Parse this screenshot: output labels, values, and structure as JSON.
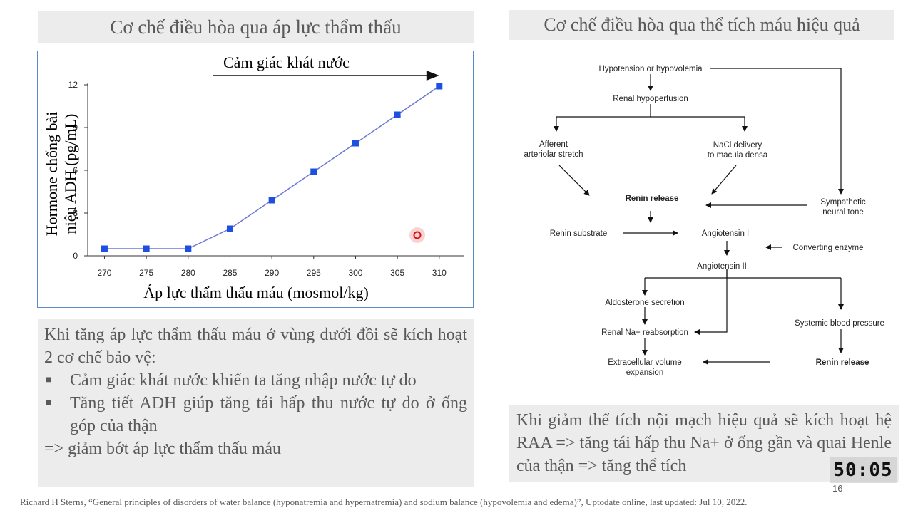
{
  "left_title": "Cơ chế điều hòa qua áp lực thẩm thấu",
  "right_title": "Cơ chế điều hòa qua thể tích máu hiệu quả",
  "chart_data": {
    "type": "line",
    "title": "",
    "xlabel": "Áp lực thẩm thấu máu (mosmol/kg)",
    "ylabel_line1": "Hormone chống bài",
    "ylabel_line2": "niệu ADH (pg/mL)",
    "annotation": "Cảm giác khát nước",
    "x": [
      270,
      275,
      280,
      285,
      290,
      295,
      300,
      305,
      310
    ],
    "series": [
      {
        "values": [
          0.5,
          0.5,
          0.5,
          1.9,
          3.9,
          5.9,
          7.9,
          9.9,
          11.9
        ]
      }
    ],
    "xlim": [
      268,
      313
    ],
    "ylim": [
      0,
      12
    ],
    "xticks": [
      "270",
      "275",
      "280",
      "285",
      "290",
      "295",
      "300",
      "305",
      "310"
    ],
    "yticks": [
      "0",
      "3",
      "6",
      "9",
      "12"
    ],
    "line_color": "#6b78d4",
    "marker_color": "#1f4fe0",
    "arrow_from_x": 283,
    "arrow_to_x": 310
  },
  "left_text": {
    "intro": "Khi tăng áp lực thẩm thấu máu ở vùng dưới đồi sẽ kích hoạt 2 cơ chế bảo vệ:",
    "bullets": [
      "Cảm giác khát nước khiến ta tăng nhập nước tự do",
      "Tăng tiết ADH giúp tăng tái hấp thu nước tự do ở ống góp của thận"
    ],
    "conclusion": "=> giảm bớt áp lực thẩm thấu máu",
    "bullet_mark": "■"
  },
  "diagram": {
    "hypotension": "Hypotension or hypovolemia",
    "renal_hypoperfusion": "Renal hypoperfusion",
    "afferent_1": "Afferent",
    "afferent_2": "arteriolar stretch",
    "nacl_1": "NaCl delivery",
    "nacl_2": "to macula densa",
    "renin_release": "Renin release",
    "sympathetic_1": "Sympathetic",
    "sympathetic_2": "neural tone",
    "renin_substrate": "Renin substrate",
    "angiotensin_1": "Angiotensin I",
    "converting_enzyme": "Converting enzyme",
    "angiotensin_2": "Angiotensin II",
    "aldosterone": "Aldosterone secretion",
    "renal_na": "Renal Na+ reabsorption",
    "systemic_bp": "Systemic blood pressure",
    "ecv_1": "Extracellular volume",
    "ecv_2": "expansion",
    "renin_release_2": "Renin release"
  },
  "right_text": "Khi giảm thể tích nội mạch hiệu quả sẽ kích hoạt hệ RAA =>  tăng tái hấp thu Na+ ở ống gần và quai Henle của thận => tăng thể tích",
  "timer": "50:05",
  "page_number": "16",
  "citation": "Richard H Sterns, “General principles of disorders of water balance (hyponatremia and hypernatremia) and sodium balance (hypovolemia and edema)”, Uptodate online, last updated: Jul 10, 2022."
}
